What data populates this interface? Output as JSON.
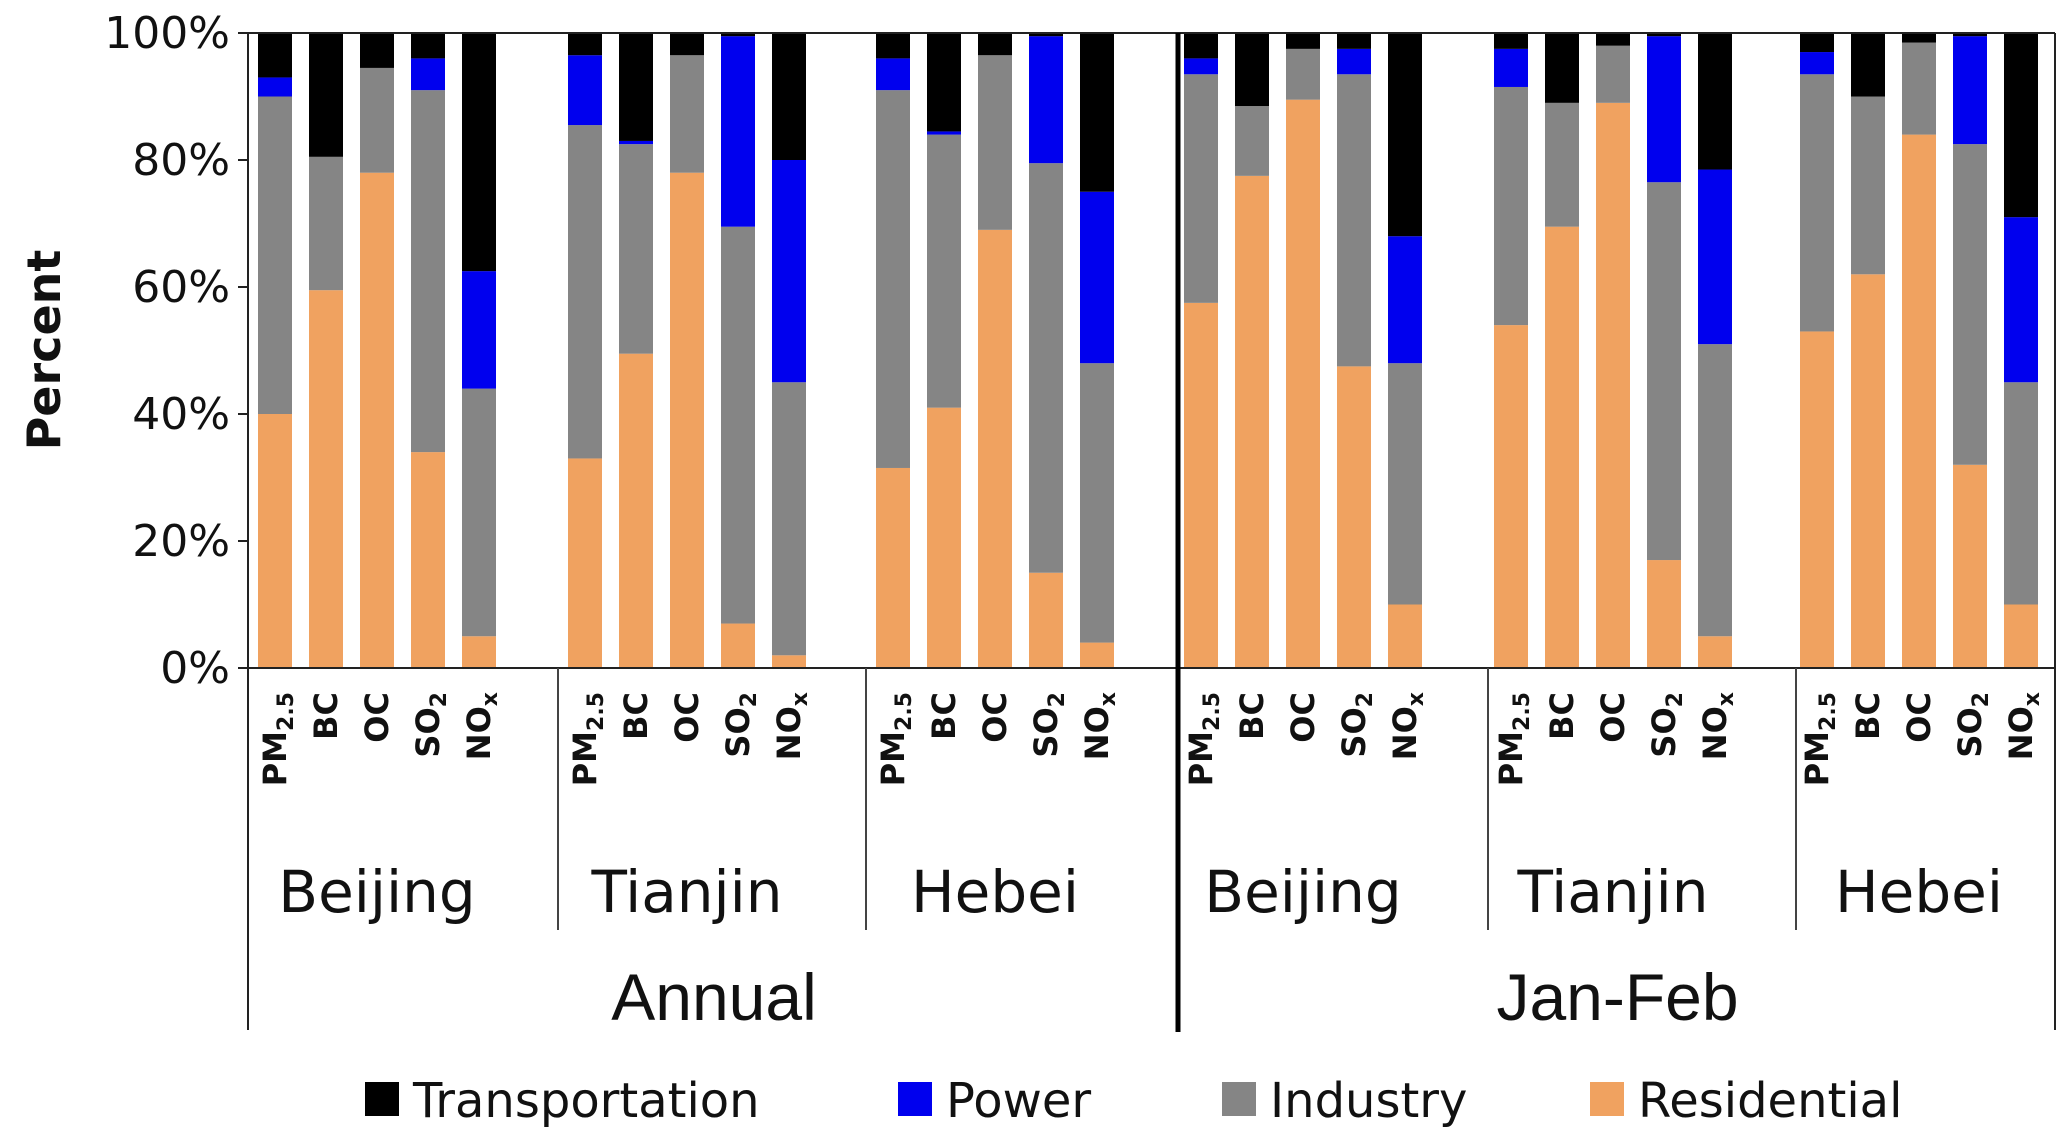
{
  "chart_data": {
    "type": "bar",
    "stacked": true,
    "ylabel": "Percent",
    "ylim": [
      0,
      100
    ],
    "yticks": [
      "0%",
      "20%",
      "40%",
      "60%",
      "80%",
      "100%"
    ],
    "species": [
      {
        "main": "PM",
        "sub": "2.5"
      },
      {
        "main": "BC",
        "sub": ""
      },
      {
        "main": "OC",
        "sub": ""
      },
      {
        "main": "SO",
        "sub": "2"
      },
      {
        "main": "NO",
        "sub": "x"
      }
    ],
    "periods": [
      {
        "label": "Annual",
        "regions": [
          {
            "label": "Beijing",
            "bars": [
              [
                40,
                50,
                3,
                7
              ],
              [
                59.5,
                21,
                0,
                19.5
              ],
              [
                78,
                16.5,
                0,
                5.5
              ],
              [
                34,
                57,
                5,
                4
              ],
              [
                5,
                39,
                18.5,
                37.5
              ]
            ]
          },
          {
            "label": "Tianjin",
            "bars": [
              [
                33,
                52.5,
                11,
                3.5
              ],
              [
                49.5,
                33,
                0.5,
                17
              ],
              [
                78,
                18.5,
                0,
                3.5
              ],
              [
                7,
                62.5,
                30,
                0.5
              ],
              [
                2,
                43,
                35,
                20
              ]
            ]
          },
          {
            "label": "Hebei",
            "bars": [
              [
                31.5,
                59.5,
                5,
                4
              ],
              [
                41,
                43,
                0.5,
                15.5
              ],
              [
                69,
                27.5,
                0,
                3.5
              ],
              [
                15,
                64.5,
                20,
                0.5
              ],
              [
                4,
                44,
                27,
                25
              ]
            ]
          }
        ]
      },
      {
        "label": "Jan-Feb",
        "regions": [
          {
            "label": "Beijing",
            "bars": [
              [
                57.5,
                36,
                2.5,
                4
              ],
              [
                77.5,
                11,
                0,
                11.5
              ],
              [
                89.5,
                8,
                0,
                2.5
              ],
              [
                47.5,
                46,
                4,
                2.5
              ],
              [
                10,
                38,
                20,
                32
              ]
            ]
          },
          {
            "label": "Tianjin",
            "bars": [
              [
                54,
                37.5,
                6,
                2.5
              ],
              [
                69.5,
                19.5,
                0,
                11
              ],
              [
                89,
                9,
                0,
                2
              ],
              [
                17,
                59.5,
                23,
                0.5
              ],
              [
                5,
                46,
                27.5,
                21.5
              ]
            ]
          },
          {
            "label": "Hebei",
            "bars": [
              [
                53,
                40.5,
                3.5,
                3
              ],
              [
                62,
                28,
                0,
                10
              ],
              [
                84,
                14.5,
                0,
                1.5
              ],
              [
                32,
                50.5,
                17,
                0.5
              ],
              [
                10,
                35,
                26,
                29
              ]
            ]
          }
        ]
      }
    ],
    "stack_order": [
      "Residential",
      "Industry",
      "Power",
      "Transportation"
    ],
    "series": [
      {
        "name": "Transportation",
        "color": "#000000"
      },
      {
        "name": "Power",
        "color": "#0000ee"
      },
      {
        "name": "Industry",
        "color": "#858585"
      },
      {
        "name": "Residential",
        "color": "#f0a260"
      }
    ],
    "legend_position": "bottom"
  }
}
